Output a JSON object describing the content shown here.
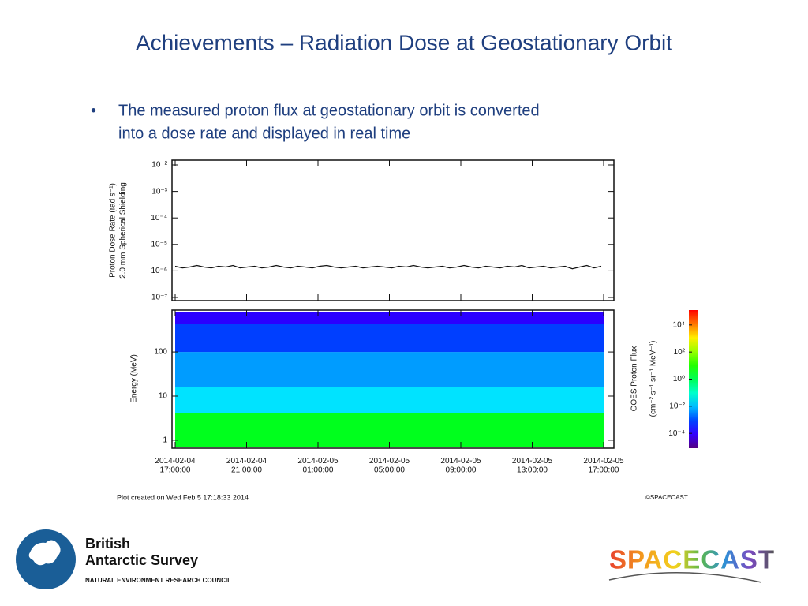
{
  "title": "Achievements – Radiation Dose at Geostationary Orbit",
  "bullet": {
    "marker": "•",
    "lines": [
      "The measured proton flux at geostationary orbit is converted",
      "into a dose rate and displayed in real time"
    ]
  },
  "chart_data": [
    {
      "type": "line",
      "ylabel": [
        "Proton Dose Rate (rad s⁻¹)",
        "2.0 mm Spherical Shielding"
      ],
      "log_y": true,
      "color": "#111111",
      "ylim": [
        7.6e-08,
        0.0151
      ],
      "yticks": [
        {
          "value": 1e-07,
          "label": "10⁻⁷"
        },
        {
          "value": 1e-06,
          "label": "10⁻⁶"
        },
        {
          "value": 1e-05,
          "label": "10⁻⁵"
        },
        {
          "value": 0.0001,
          "label": "10⁻⁴"
        },
        {
          "value": 0.001,
          "label": "10⁻³"
        },
        {
          "value": 0.01,
          "label": "10⁻²"
        }
      ],
      "values": [
        1.5e-06,
        1.3e-06,
        1.4e-06,
        1.6e-06,
        1.4e-06,
        1.3e-06,
        1.5e-06,
        1.4e-06,
        1.6e-06,
        1.3e-06,
        1.4e-06,
        1.5e-06,
        1.3e-06,
        1.4e-06,
        1.6e-06,
        1.4e-06,
        1.3e-06,
        1.5e-06,
        1.4e-06,
        1.3e-06,
        1.5e-06,
        1.6e-06,
        1.4e-06,
        1.3e-06,
        1.4e-06,
        1.5e-06,
        1.3e-06,
        1.4e-06,
        1.5e-06,
        1.4e-06,
        1.3e-06,
        1.5e-06,
        1.4e-06,
        1.6e-06,
        1.4e-06,
        1.3e-06,
        1.4e-06,
        1.5e-06,
        1.3e-06,
        1.4e-06,
        1.6e-06,
        1.4e-06,
        1.3e-06,
        1.5e-06,
        1.4e-06,
        1.3e-06,
        1.5e-06,
        1.4e-06,
        1.6e-06,
        1.3e-06,
        1.4e-06,
        1.5e-06,
        1.3e-06,
        1.4e-06,
        1.5e-06,
        1.2e-06,
        1.4e-06,
        1.6e-06,
        1.3e-06,
        1.5e-06
      ]
    },
    {
      "type": "heatmap",
      "ylabel": "Energy (MeV)",
      "log_y": true,
      "ylim": [
        0.66,
        890
      ],
      "yticks": [
        1,
        10,
        100
      ],
      "xticks": [
        "2014-02-04 17:00:00",
        "2014-02-04 21:00:00",
        "2014-02-05 01:00:00",
        "2014-02-05 05:00:00",
        "2014-02-05 09:00:00",
        "2014-02-05 13:00:00",
        "2014-02-05 17:00:00"
      ],
      "bands": [
        {
          "energy": [
            0.7,
            4.2
          ],
          "flux": 3
        },
        {
          "energy": [
            4.2,
            16
          ],
          "flux": 0.02
        },
        {
          "energy": [
            16,
            100
          ],
          "flux": 0.005
        },
        {
          "energy": [
            100,
            440
          ],
          "flux": 0.0008
        },
        {
          "energy": [
            440,
            800
          ],
          "flux": 0.0001
        }
      ],
      "colorbar": {
        "label": [
          "GOES Proton Flux",
          "(cm⁻² s⁻¹ sr⁻¹ MeV⁻¹)"
        ],
        "lim": [
          8e-06,
          125000
        ],
        "ticks": [
          {
            "value": 0.0001,
            "label": "10⁻⁴"
          },
          {
            "value": 0.01,
            "label": "10⁻²"
          },
          {
            "value": 1,
            "label": "10⁰"
          },
          {
            "value": 100,
            "label": "10²"
          },
          {
            "value": 10000,
            "label": "10⁴"
          }
        ]
      }
    }
  ],
  "footer": {
    "created": "Plot created on Wed Feb  5 17:18:33 2014",
    "credit": "©SPACECAST"
  },
  "logos": {
    "bas": [
      "British",
      "Antarctic Survey"
    ],
    "nerc": "NATURAL ENVIRONMENT RESEARCH COUNCIL",
    "spacecast": "SPACECAST"
  }
}
